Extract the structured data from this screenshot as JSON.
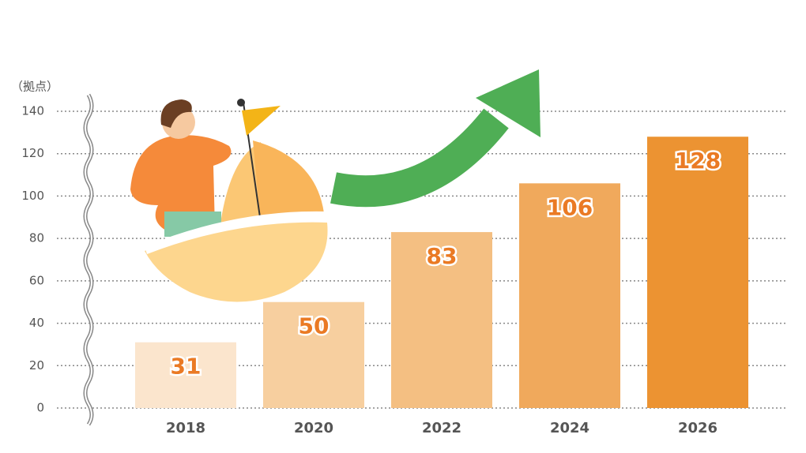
{
  "chart_data": {
    "type": "bar",
    "y_axis_label": "（拠点）",
    "categories": [
      "2018",
      "2020",
      "2022",
      "2024",
      "2026"
    ],
    "values": [
      31,
      50,
      83,
      106,
      128
    ],
    "colors": [
      "#fbe5cd",
      "#f7cf9f",
      "#f4bf82",
      "#f0a95c",
      "#ec9332"
    ],
    "ylim": [
      0,
      140
    ],
    "yticks": [
      0,
      20,
      40,
      60,
      80,
      100,
      120,
      140
    ],
    "grid": true
  }
}
